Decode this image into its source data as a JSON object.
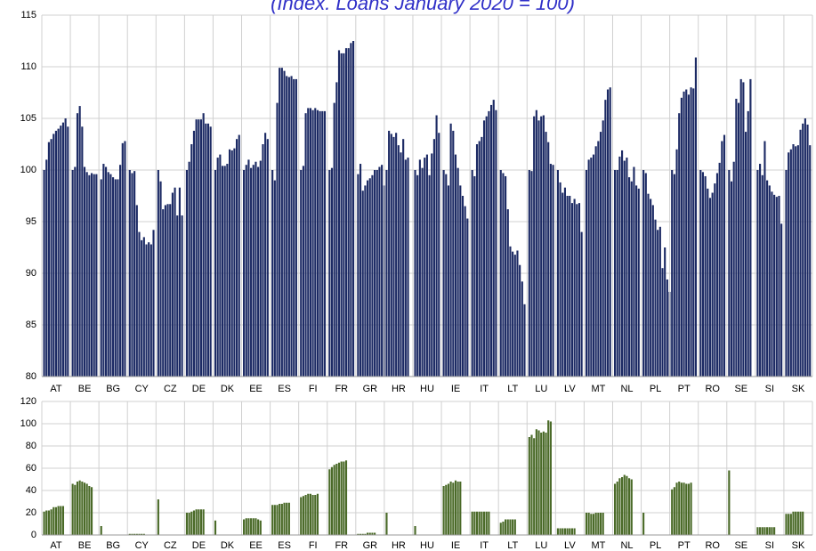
{
  "chart_data": [
    {
      "type": "bar",
      "title": "(Index. Loans January 2020 = 100)",
      "color": "#1c2a64",
      "grid": true,
      "ylim": [
        80,
        115
      ],
      "yticks": [
        80,
        85,
        90,
        95,
        100,
        105,
        110,
        115
      ],
      "categories": [
        "AT",
        "BE",
        "BG",
        "CY",
        "CZ",
        "DE",
        "DK",
        "EE",
        "ES",
        "FI",
        "FR",
        "GR",
        "HR",
        "HU",
        "IE",
        "IT",
        "LT",
        "LU",
        "LV",
        "MT",
        "NL",
        "PL",
        "PT",
        "RO",
        "SE",
        "SI",
        "SK"
      ],
      "values": [
        [
          100,
          101,
          102.7,
          103,
          103.5,
          103.8,
          104,
          104.3,
          104.6,
          105,
          104.2
        ],
        [
          100,
          100.3,
          105.5,
          106.2,
          104.2,
          100.3,
          99.8,
          99.5,
          99.7,
          99.6,
          99.6
        ],
        [
          99.1,
          100.6,
          100.3,
          99.8,
          99.6,
          99.3,
          99.1,
          99.1,
          100.5,
          102.6,
          102.8
        ],
        [
          100,
          99.7,
          99.9,
          96.6,
          94,
          93.2,
          93.5,
          92.8,
          93,
          92.8,
          94.2
        ],
        [
          100,
          98.9,
          96.2,
          96.6,
          96.7,
          96.7,
          97.8,
          98.3,
          95.6,
          98.3,
          95.6
        ],
        [
          100,
          100.8,
          102.5,
          103.8,
          104.9,
          104.9,
          104.9,
          105.5,
          104.5,
          104.5,
          104.2
        ],
        [
          100,
          101.2,
          101.5,
          100.4,
          100.4,
          100.6,
          102,
          101.9,
          102.1,
          103,
          103.4
        ],
        [
          100,
          100.5,
          101,
          100.2,
          100.5,
          100.8,
          100.3,
          100.9,
          102.5,
          103.6,
          103
        ],
        [
          100,
          99,
          106.5,
          109.9,
          109.9,
          109.6,
          109.1,
          109,
          109.1,
          108.8,
          108.8
        ],
        [
          100,
          100.4,
          105.5,
          106,
          106,
          105.8,
          106,
          105.8,
          105.7,
          105.7,
          105.7
        ],
        [
          100,
          100.2,
          106.5,
          108.5,
          111.6,
          111.3,
          111.3,
          111.8,
          111.8,
          112.3,
          112.5
        ],
        [
          99.6,
          100.6,
          98,
          98.5,
          99,
          99.2,
          99.5,
          100,
          100,
          100.3,
          100.5,
          98.5
        ],
        [
          100,
          103.8,
          103.5,
          103.2,
          103.6,
          102.4,
          101.7,
          103,
          101,
          101.2
        ],
        [
          100,
          99.5,
          101,
          100.2,
          101.2,
          101.5,
          99.5,
          101.6,
          103,
          105.3,
          103.6
        ],
        [
          100,
          99.6,
          98.5,
          104.5,
          103.8,
          101.5,
          100.2,
          98.5,
          97.5,
          96.5,
          95.3
        ],
        [
          100,
          99.4,
          102.5,
          102.8,
          103.2,
          104.8,
          105.2,
          105.7,
          106.3,
          106.8,
          105.8
        ],
        [
          100,
          99.7,
          99.4,
          96.2,
          92.6,
          92.1,
          91.8,
          92.2,
          90.8,
          89.2,
          87
        ],
        [
          100,
          99.9,
          105.2,
          105.8,
          104.8,
          105.2,
          105.3,
          103.7,
          102.7,
          100.6,
          100.5
        ],
        [
          100,
          98.8,
          97.8,
          98.3,
          97.5,
          97.5,
          96.8,
          97.2,
          96.7,
          96.8,
          94
        ],
        [
          100,
          101,
          101.2,
          101.5,
          102.3,
          102.8,
          103.7,
          104.8,
          106.8,
          107.8,
          108
        ],
        [
          100,
          100,
          101.3,
          101.9,
          100.9,
          101.2,
          99.3,
          98.9,
          100.3,
          98.5,
          98.2
        ],
        [
          100,
          99.7,
          97.7,
          97.2,
          96.6,
          95.2,
          94.2,
          94.5,
          90.5,
          92.5,
          89.4,
          88.2
        ],
        [
          100,
          99.6,
          102,
          105.5,
          107,
          107.6,
          107.8,
          107.3,
          108,
          107.9,
          110.9
        ],
        [
          100,
          99.8,
          99.4,
          98.2,
          97.3,
          97.8,
          98.7,
          99.7,
          100.7,
          102.8,
          103.4
        ],
        [
          100,
          98.9,
          100.8,
          106.9,
          106.5,
          108.8,
          108.5,
          103.7,
          105.7,
          108.8
        ],
        [
          100,
          100.6,
          99.5,
          102.8,
          99,
          98.5,
          97.9,
          97.6,
          97.4,
          97.5,
          94.8
        ],
        [
          100,
          101.7,
          102,
          102.5,
          102.3,
          102.4,
          103.9,
          104.5,
          105,
          104.4,
          102.4
        ]
      ]
    },
    {
      "type": "bar",
      "color": "#4a6a28",
      "grid": true,
      "ylim": [
        0,
        120
      ],
      "yticks": [
        0,
        20,
        40,
        60,
        80,
        100,
        120
      ],
      "categories": [
        "AT",
        "BE",
        "BG",
        "CY",
        "CZ",
        "DE",
        "DK",
        "EE",
        "ES",
        "FI",
        "FR",
        "GR",
        "HR",
        "HU",
        "IE",
        "IT",
        "LT",
        "LU",
        "LV",
        "MT",
        "NL",
        "PL",
        "PT",
        "RO",
        "SE",
        "SI",
        "SK"
      ],
      "values": [
        [
          21,
          22,
          22,
          23,
          25,
          25,
          26,
          26,
          26
        ],
        [
          46,
          45,
          48,
          49,
          48,
          47,
          46,
          44,
          43
        ],
        [
          8
        ],
        [
          1,
          1,
          1,
          1,
          1,
          1,
          1
        ],
        [
          32
        ],
        [
          20,
          20,
          21,
          22,
          23,
          23,
          23,
          23
        ],
        [
          13
        ],
        [
          14,
          15,
          15,
          15,
          15,
          15,
          14,
          13
        ],
        [
          27,
          27,
          27,
          28,
          28,
          29,
          29,
          29
        ],
        [
          34,
          35,
          36,
          37,
          37,
          36,
          36,
          37
        ],
        [
          59,
          61,
          63,
          64,
          65,
          66,
          66,
          67
        ],
        [
          1,
          1,
          1,
          1,
          2,
          2,
          2,
          2
        ],
        [
          20
        ],
        [
          8
        ],
        [
          44,
          45,
          46,
          48,
          47,
          49,
          48,
          48
        ],
        [
          21,
          21,
          21,
          21,
          21,
          21,
          21,
          21
        ],
        [
          11,
          12,
          14,
          14,
          14,
          14,
          14
        ],
        [
          88,
          90,
          87,
          95,
          94,
          92,
          93,
          92,
          103,
          102
        ],
        [
          6,
          6,
          6,
          6,
          6,
          6,
          6,
          6
        ],
        [
          20,
          20,
          19,
          19,
          20,
          20,
          20,
          20
        ],
        [
          46,
          48,
          51,
          52,
          54,
          53,
          51,
          50
        ],
        [
          20
        ],
        [
          41,
          43,
          47,
          48,
          47,
          47,
          46,
          46,
          47
        ],
        [],
        [
          58
        ],
        [
          7,
          7,
          7,
          7,
          7,
          7,
          7,
          7
        ],
        [
          19,
          19,
          19,
          21,
          21,
          21,
          21,
          21
        ]
      ]
    }
  ]
}
